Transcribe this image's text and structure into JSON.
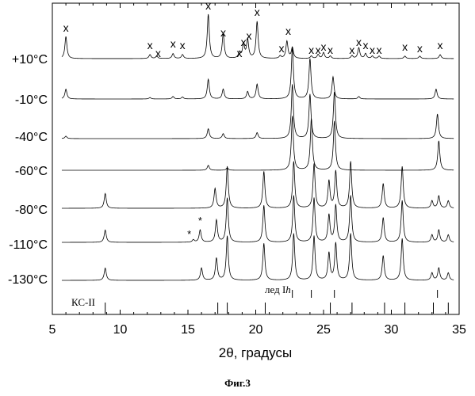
{
  "chart_data": {
    "type": "line",
    "title": "",
    "xlabel": "2θ, градусы",
    "ylabel": "",
    "xlim": [
      5,
      35
    ],
    "xticks": [
      5,
      10,
      15,
      20,
      25,
      30,
      35
    ],
    "grid": false,
    "legend": "none",
    "series": [
      {
        "name": "+10°C",
        "peaks": [
          [
            6.0,
            0.45
          ],
          [
            12.2,
            0.08
          ],
          [
            12.7,
            0.05
          ],
          [
            13.9,
            0.1
          ],
          [
            14.6,
            0.08
          ],
          [
            16.5,
            0.9
          ],
          [
            17.6,
            0.5
          ],
          [
            18.8,
            0.12
          ],
          [
            19.1,
            0.28
          ],
          [
            19.4,
            0.38
          ],
          [
            20.1,
            0.75
          ],
          [
            21.8,
            0.05
          ],
          [
            22.3,
            0.35
          ],
          [
            22.7,
            0.22
          ],
          [
            24.1,
            0.05
          ],
          [
            24.6,
            0.08
          ],
          [
            25.0,
            0.12
          ],
          [
            25.5,
            0.05
          ],
          [
            27.1,
            0.06
          ],
          [
            27.6,
            0.22
          ],
          [
            28.1,
            0.1
          ],
          [
            28.6,
            0.05
          ],
          [
            29.1,
            0.05
          ],
          [
            31.0,
            0.05
          ],
          [
            32.1,
            0.05
          ],
          [
            33.6,
            0.08
          ]
        ]
      },
      {
        "name": "-10°C",
        "peaks": [
          [
            6.0,
            0.2
          ],
          [
            12.2,
            0.03
          ],
          [
            13.9,
            0.05
          ],
          [
            14.6,
            0.04
          ],
          [
            16.5,
            0.4
          ],
          [
            17.6,
            0.2
          ],
          [
            19.4,
            0.15
          ],
          [
            20.1,
            0.3
          ],
          [
            22.7,
            1.05
          ],
          [
            24.0,
            0.82
          ],
          [
            25.7,
            0.45
          ],
          [
            27.6,
            0.05
          ],
          [
            33.3,
            0.2
          ]
        ]
      },
      {
        "name": "-40°C",
        "peaks": [
          [
            6.0,
            0.05
          ],
          [
            16.5,
            0.2
          ],
          [
            17.6,
            0.1
          ],
          [
            20.1,
            0.12
          ],
          [
            22.7,
            1.1
          ],
          [
            24.0,
            0.9
          ],
          [
            25.8,
            0.95
          ],
          [
            33.4,
            0.5
          ]
        ]
      },
      {
        "name": "-60°C",
        "peaks": [
          [
            16.5,
            0.1
          ],
          [
            17.9,
            0.05
          ],
          [
            22.7,
            1.1
          ],
          [
            24.1,
            1.05
          ],
          [
            25.8,
            1.0
          ],
          [
            33.5,
            0.6
          ]
        ]
      },
      {
        "name": "-80°C",
        "peaks": [
          [
            8.9,
            0.3
          ],
          [
            17.0,
            0.4
          ],
          [
            17.9,
            0.85
          ],
          [
            20.6,
            0.75
          ],
          [
            22.8,
            0.95
          ],
          [
            24.3,
            0.9
          ],
          [
            25.4,
            0.55
          ],
          [
            25.9,
            0.75
          ],
          [
            27.0,
            0.95
          ],
          [
            29.4,
            0.5
          ],
          [
            30.8,
            0.85
          ],
          [
            33.0,
            0.15
          ],
          [
            33.5,
            0.25
          ],
          [
            34.2,
            0.15
          ]
        ]
      },
      {
        "name": "-110°C",
        "peaks": [
          [
            8.9,
            0.25
          ],
          [
            15.4,
            0.05
          ],
          [
            15.9,
            0.25
          ],
          [
            17.1,
            0.45
          ],
          [
            17.9,
            0.9
          ],
          [
            20.6,
            0.75
          ],
          [
            22.8,
            0.95
          ],
          [
            24.3,
            0.9
          ],
          [
            25.4,
            0.55
          ],
          [
            25.9,
            0.75
          ],
          [
            27.0,
            0.95
          ],
          [
            29.4,
            0.5
          ],
          [
            30.8,
            0.85
          ],
          [
            33.0,
            0.15
          ],
          [
            33.5,
            0.25
          ],
          [
            34.2,
            0.15
          ]
        ]
      },
      {
        "name": "-130°C",
        "peaks": [
          [
            8.9,
            0.25
          ],
          [
            16.0,
            0.25
          ],
          [
            17.1,
            0.45
          ],
          [
            17.9,
            0.9
          ],
          [
            20.6,
            0.75
          ],
          [
            22.8,
            0.95
          ],
          [
            24.3,
            0.9
          ],
          [
            25.4,
            0.55
          ],
          [
            25.9,
            0.75
          ],
          [
            27.0,
            0.95
          ],
          [
            29.4,
            0.5
          ],
          [
            30.8,
            0.85
          ],
          [
            33.0,
            0.15
          ],
          [
            33.5,
            0.25
          ],
          [
            34.2,
            0.15
          ]
        ]
      }
    ],
    "annotations": {
      "x_marker_text": "x",
      "x_marker_positions": [
        6.0,
        12.2,
        12.8,
        13.9,
        14.6,
        16.5,
        17.6,
        18.8,
        19.1,
        19.5,
        20.1,
        21.9,
        22.4,
        24.1,
        24.6,
        25.0,
        25.5,
        27.1,
        27.6,
        28.1,
        28.6,
        29.1,
        31.0,
        32.1,
        33.6
      ],
      "star_text": "*",
      "star_positions": [
        15.1,
        15.9
      ],
      "reference_sets": [
        {
          "label": "лед I",
          "label_italic": "h",
          "positions": [
            22.7,
            24.1,
            25.8,
            33.4
          ]
        },
        {
          "label": "КС-II",
          "positions": [
            8.9,
            17.2,
            17.9,
            20.7,
            25.5,
            27.1,
            29.5,
            31.0,
            33.1,
            34.2
          ]
        }
      ]
    }
  },
  "caption": "Фиг.3"
}
